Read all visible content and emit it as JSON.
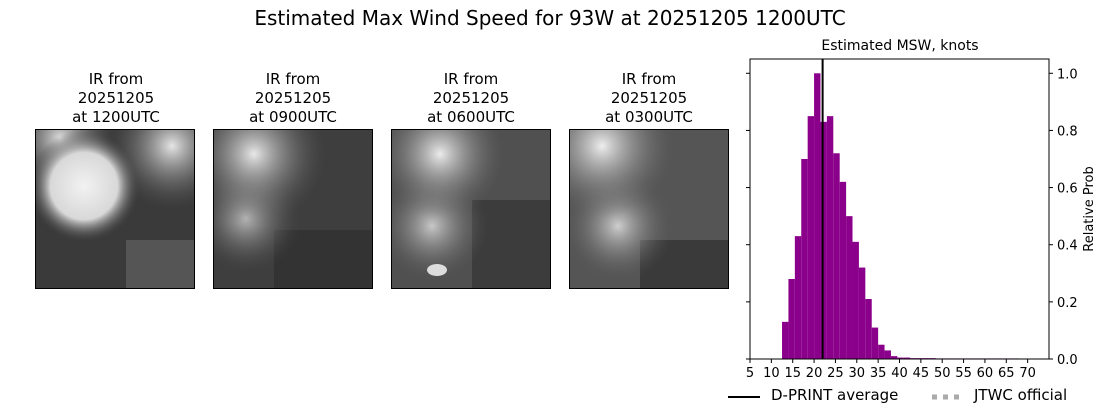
{
  "suptitle": "Estimated Max Wind Speed for 93W at 20251205 1200UTC",
  "ir_panels": [
    {
      "line1": "IR from",
      "line2": "20251205",
      "line3": "at 1200UTC"
    },
    {
      "line1": "IR from",
      "line2": "20251205",
      "line3": "at 0900UTC"
    },
    {
      "line1": "IR from",
      "line2": "20251205",
      "line3": "at 0600UTC"
    },
    {
      "line1": "IR from",
      "line2": "20251205",
      "line3": "at 0300UTC"
    }
  ],
  "legend": {
    "dprint_label": "D-PRINT average",
    "jtwc_label": "JTWC official"
  },
  "chart_data": {
    "type": "bar",
    "title": "Estimated MSW, knots",
    "xlabel": "",
    "ylabel": "Relative Prob",
    "xlim": [
      5,
      75
    ],
    "ylim": [
      0,
      1.05
    ],
    "xticks": [
      5,
      10,
      15,
      20,
      25,
      30,
      35,
      40,
      45,
      50,
      55,
      60,
      65,
      70
    ],
    "yticks": [
      "0.0",
      "0.2",
      "0.4",
      "0.6",
      "0.8",
      "1.0"
    ],
    "bin_width": 1.5,
    "bin_starts": [
      11,
      12.5,
      14,
      15.5,
      17,
      18.5,
      20,
      21.5,
      23,
      24.5,
      26,
      27.5,
      29,
      30.5,
      32,
      33.5,
      35,
      36.5,
      38,
      39.5,
      41,
      42.5,
      44,
      45.5,
      47,
      48.5,
      50,
      51.5,
      53,
      54.5,
      56,
      57.5,
      59,
      60.5,
      62,
      63.5,
      65,
      66.5,
      68
    ],
    "values": [
      0.0,
      0.13,
      0.28,
      0.43,
      0.7,
      0.85,
      1.0,
      0.83,
      0.85,
      0.72,
      0.62,
      0.5,
      0.41,
      0.32,
      0.21,
      0.11,
      0.05,
      0.03,
      0.01,
      0.005,
      0.005,
      0.003,
      0.003,
      0.003,
      0.003,
      0.002,
      0.002,
      0.002,
      0.002,
      0.002,
      0.002,
      0.002,
      0.002,
      0.002,
      0.002,
      0.002,
      0.002,
      0.002,
      0.0
    ],
    "bar_color": "#8b008b",
    "dprint_average": 22,
    "dprint_color": "#000000",
    "jtwc_color": "#aaaaaa",
    "legend_position": "bottom",
    "grid": false
  }
}
